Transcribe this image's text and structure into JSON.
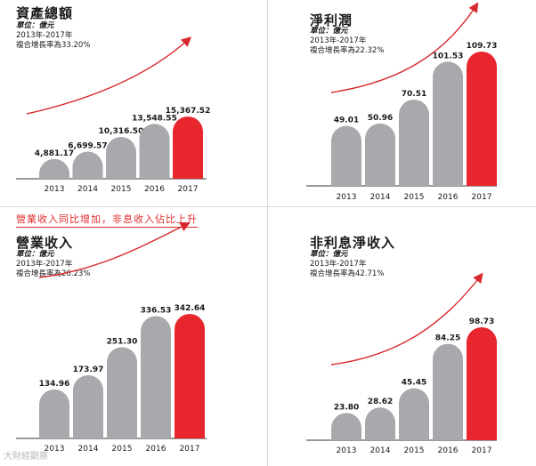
{
  "headline": "營業收入同比增加，非息收入佔比上升",
  "watermark": "大財經觀察",
  "colors": {
    "gray_bar": "#a7a9ac",
    "red_bar": "#e8262d",
    "arrow": "#d7282e",
    "axis": "#333333"
  },
  "panels": [
    {
      "title": "資產總額",
      "unit": "單位：億元",
      "period": "2013年-2017年",
      "cagr": "複合增長率為33.20%"
    },
    {
      "title": "淨利潤",
      "unit": "單位：億元",
      "period": "2013年-2017年",
      "cagr": "複合增長率為22.32%"
    },
    {
      "title": "營業收入",
      "unit": "單位：億元",
      "period": "2013年-2017年",
      "cagr": "複合增長率為26.23%"
    },
    {
      "title": "非利息淨收入",
      "unit": "單位：億元",
      "period": "2013年-2017年",
      "cagr": "複合增長率為42.71%"
    }
  ],
  "chart_data": [
    {
      "type": "bar",
      "title": "資產總額",
      "ylabel": "億元",
      "categories": [
        "2013",
        "2014",
        "2015",
        "2016",
        "2017"
      ],
      "values": [
        4881.17,
        6699.57,
        10316.5,
        13548.55,
        15367.52
      ],
      "labels": [
        "4,881.17",
        "6,699.57",
        "10,316.50",
        "13,548.55",
        "15,367.52"
      ],
      "highlight_index": 4,
      "ylim": [
        0,
        15367.52
      ]
    },
    {
      "type": "bar",
      "title": "淨利潤",
      "ylabel": "億元",
      "categories": [
        "2013",
        "2014",
        "2015",
        "2016",
        "2017"
      ],
      "values": [
        49.01,
        50.96,
        70.51,
        101.53,
        109.73
      ],
      "labels": [
        "49.01",
        "50.96",
        "70.51",
        "101.53",
        "109.73"
      ],
      "highlight_index": 4,
      "ylim": [
        0,
        109.73
      ]
    },
    {
      "type": "bar",
      "title": "營業收入",
      "ylabel": "億元",
      "categories": [
        "2013",
        "2014",
        "2015",
        "2016",
        "2017"
      ],
      "values": [
        134.96,
        173.97,
        251.3,
        336.53,
        342.64
      ],
      "labels": [
        "134.96",
        "173.97",
        "251.30",
        "336.53",
        "342.64"
      ],
      "highlight_index": 4,
      "ylim": [
        0,
        342.64
      ]
    },
    {
      "type": "bar",
      "title": "非利息淨收入",
      "ylabel": "億元",
      "categories": [
        "2013",
        "2014",
        "2015",
        "2016",
        "2017"
      ],
      "values": [
        23.8,
        28.62,
        45.45,
        84.25,
        98.73
      ],
      "labels": [
        "23.80",
        "28.62",
        "45.45",
        "84.25",
        "98.73"
      ],
      "highlight_index": 4,
      "ylim": [
        0,
        98.73
      ]
    }
  ]
}
